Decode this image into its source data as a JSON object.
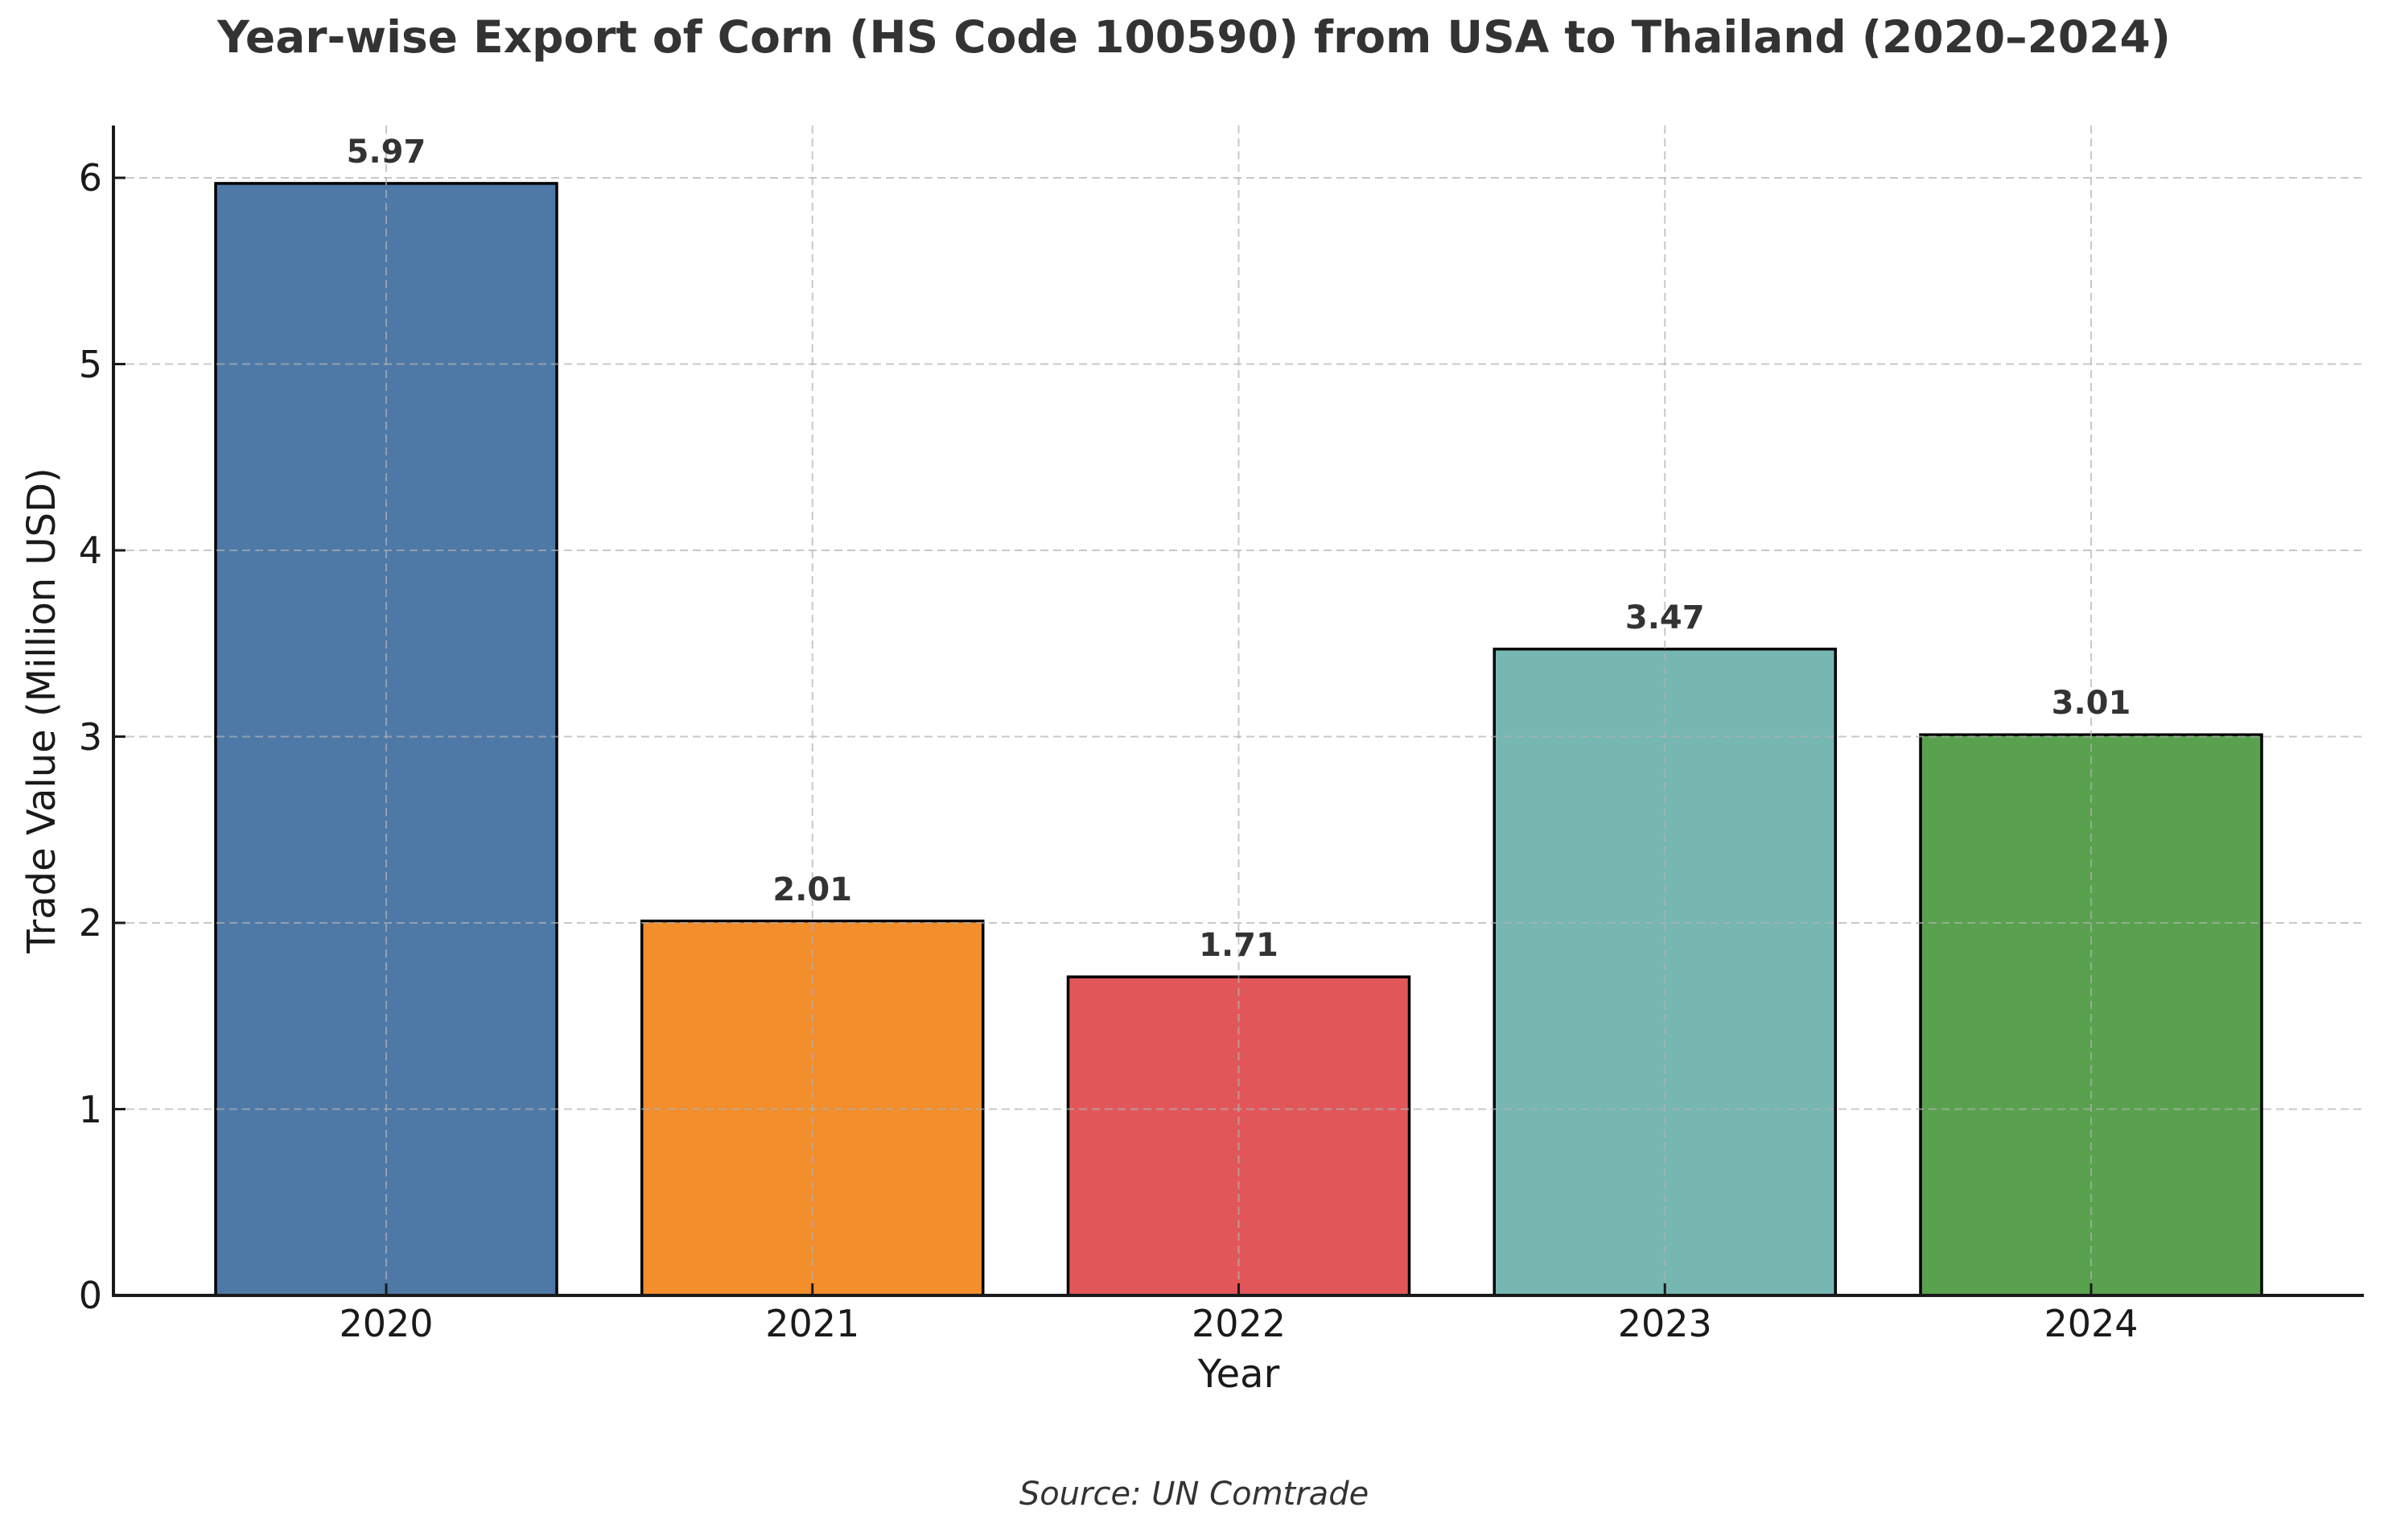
{
  "chart_data": {
    "type": "bar",
    "title": "Year-wise Export of Corn (HS Code 100590) from USA to Thailand (2020–2024)",
    "xlabel": "Year",
    "ylabel": "Trade Value (Million USD)",
    "categories": [
      "2020",
      "2021",
      "2022",
      "2023",
      "2024"
    ],
    "values": [
      5.97,
      2.01,
      1.71,
      3.47,
      3.01
    ],
    "value_labels": [
      "5.97",
      "2.01",
      "1.71",
      "3.47",
      "3.01"
    ],
    "colors": [
      "#4E79A7",
      "#F28E2B",
      "#E15759",
      "#76B7B2",
      "#59A14F"
    ],
    "edge_color": "#000000",
    "yticks": [
      "0",
      "1",
      "2",
      "3",
      "4",
      "5",
      "6"
    ],
    "ylim": [
      0,
      6.27
    ],
    "grid": true,
    "grid_style": "dashed",
    "legend": null,
    "source_note": "Source: UN Comtrade"
  }
}
